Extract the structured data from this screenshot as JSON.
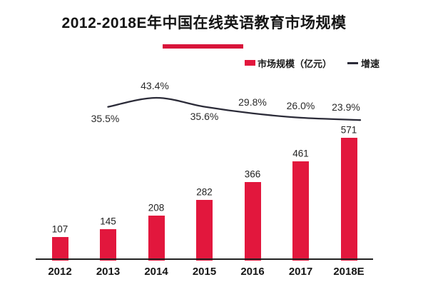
{
  "title": "2012-2018E年中国在线英语教育市场规模",
  "legend": {
    "market_size_label": "市场规模（亿元）",
    "growth_label": "增速"
  },
  "colors": {
    "bar_red": "#e2173d",
    "underline_red": "#d8143a",
    "line_dark": "#2b2b38",
    "text_dark": "#1a1a1a"
  },
  "chart_data": {
    "type": "bar",
    "combo": "bar+line",
    "title": "2012-2018E年中国在线英语教育市场规模",
    "categories": [
      "2012",
      "2013",
      "2014",
      "2015",
      "2016",
      "2017",
      "2018E"
    ],
    "series": [
      {
        "name": "市场规模（亿元）",
        "type": "bar",
        "values": [
          107,
          145,
          208,
          282,
          366,
          461,
          571
        ],
        "value_labels": [
          "107",
          "145",
          "208",
          "282",
          "366",
          "461",
          "571"
        ]
      },
      {
        "name": "增速",
        "type": "line",
        "categories": [
          "2013",
          "2014",
          "2015",
          "2016",
          "2017",
          "2018E"
        ],
        "values_percent": [
          35.5,
          43.4,
          35.6,
          29.8,
          26.0,
          23.9
        ],
        "point_labels": [
          "35.5%",
          "43.4%",
          "35.6%",
          "29.8%",
          "26.0%",
          "23.9%"
        ]
      }
    ],
    "xlabel": "",
    "ylabel": "",
    "ylim": [
      0,
      620
    ],
    "grid": false,
    "y_axis_visible": false,
    "x_axis_visible": true,
    "legend_position": "top-right"
  }
}
